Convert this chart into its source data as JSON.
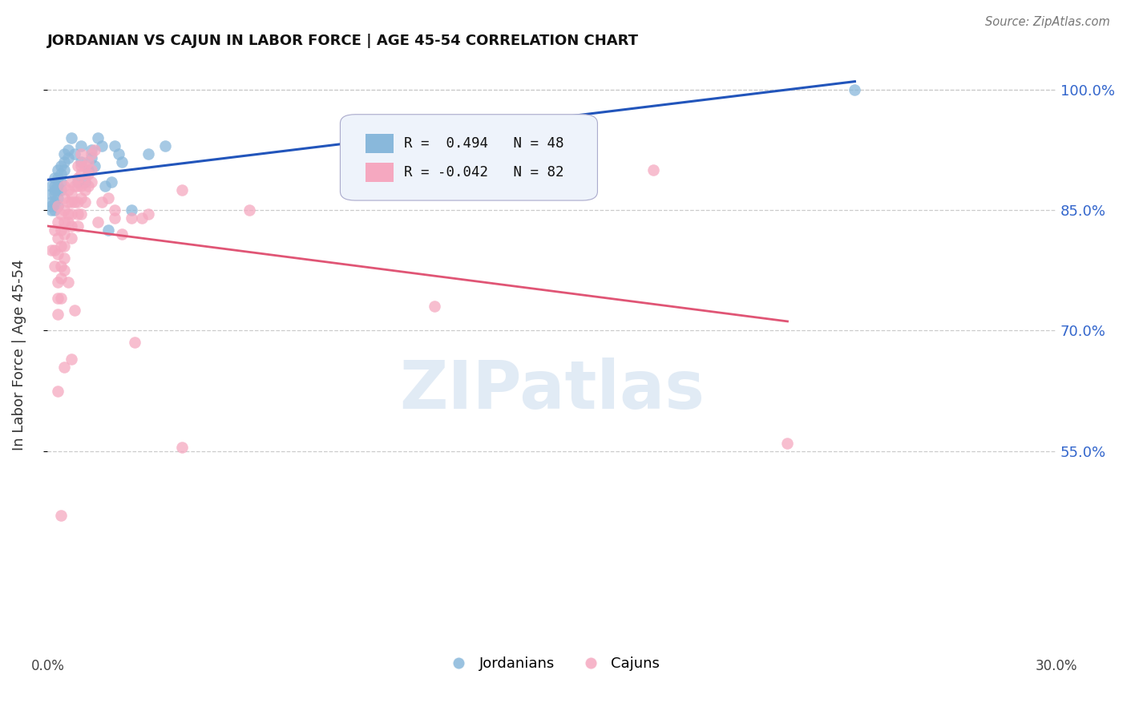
{
  "title": "JORDANIAN VS CAJUN IN LABOR FORCE | AGE 45-54 CORRELATION CHART",
  "source": "Source: ZipAtlas.com",
  "ylabel": "In Labor Force | Age 45-54",
  "xlim": [
    0.0,
    0.3
  ],
  "ylim": [
    0.3,
    1.04
  ],
  "yticks": [
    0.55,
    0.7,
    0.85,
    1.0
  ],
  "ytick_labels": [
    "55.0%",
    "70.0%",
    "85.0%",
    "100.0%"
  ],
  "yticks_dashed": [
    0.55,
    0.7,
    0.85,
    1.0
  ],
  "xticks": [
    0.0,
    0.05,
    0.1,
    0.15,
    0.2,
    0.25,
    0.3
  ],
  "xtick_labels": [
    "0.0%",
    "",
    "",
    "",
    "",
    "",
    "30.0%"
  ],
  "R_jordanian": 0.494,
  "N_jordanian": 48,
  "R_cajun": -0.042,
  "N_cajun": 82,
  "jordanian_color": "#89b8db",
  "cajun_color": "#f5a8c0",
  "jordanian_line_color": "#2255bb",
  "cajun_line_color": "#e05575",
  "watermark_text": "ZIPatlas",
  "jordanian_points": [
    [
      0.001,
      0.88
    ],
    [
      0.001,
      0.87
    ],
    [
      0.001,
      0.86
    ],
    [
      0.001,
      0.855
    ],
    [
      0.001,
      0.85
    ],
    [
      0.002,
      0.89
    ],
    [
      0.002,
      0.88
    ],
    [
      0.002,
      0.875
    ],
    [
      0.002,
      0.87
    ],
    [
      0.002,
      0.86
    ],
    [
      0.002,
      0.85
    ],
    [
      0.003,
      0.9
    ],
    [
      0.003,
      0.89
    ],
    [
      0.003,
      0.88
    ],
    [
      0.003,
      0.875
    ],
    [
      0.003,
      0.865
    ],
    [
      0.003,
      0.855
    ],
    [
      0.004,
      0.905
    ],
    [
      0.004,
      0.895
    ],
    [
      0.004,
      0.885
    ],
    [
      0.004,
      0.875
    ],
    [
      0.005,
      0.92
    ],
    [
      0.005,
      0.91
    ],
    [
      0.005,
      0.9
    ],
    [
      0.006,
      0.925
    ],
    [
      0.006,
      0.915
    ],
    [
      0.007,
      0.94
    ],
    [
      0.008,
      0.92
    ],
    [
      0.009,
      0.885
    ],
    [
      0.01,
      0.93
    ],
    [
      0.01,
      0.91
    ],
    [
      0.011,
      0.885
    ],
    [
      0.012,
      0.9
    ],
    [
      0.013,
      0.925
    ],
    [
      0.013,
      0.915
    ],
    [
      0.014,
      0.905
    ],
    [
      0.015,
      0.94
    ],
    [
      0.016,
      0.93
    ],
    [
      0.017,
      0.88
    ],
    [
      0.018,
      0.825
    ],
    [
      0.019,
      0.885
    ],
    [
      0.02,
      0.93
    ],
    [
      0.021,
      0.92
    ],
    [
      0.022,
      0.91
    ],
    [
      0.025,
      0.85
    ],
    [
      0.03,
      0.92
    ],
    [
      0.035,
      0.93
    ],
    [
      0.24,
      1.0
    ]
  ],
  "cajun_points": [
    [
      0.001,
      0.8
    ],
    [
      0.002,
      0.825
    ],
    [
      0.002,
      0.8
    ],
    [
      0.002,
      0.78
    ],
    [
      0.003,
      0.855
    ],
    [
      0.003,
      0.835
    ],
    [
      0.003,
      0.815
    ],
    [
      0.003,
      0.795
    ],
    [
      0.003,
      0.76
    ],
    [
      0.003,
      0.74
    ],
    [
      0.003,
      0.72
    ],
    [
      0.003,
      0.625
    ],
    [
      0.004,
      0.845
    ],
    [
      0.004,
      0.825
    ],
    [
      0.004,
      0.805
    ],
    [
      0.004,
      0.78
    ],
    [
      0.004,
      0.765
    ],
    [
      0.004,
      0.74
    ],
    [
      0.004,
      0.47
    ],
    [
      0.005,
      0.88
    ],
    [
      0.005,
      0.865
    ],
    [
      0.005,
      0.85
    ],
    [
      0.005,
      0.835
    ],
    [
      0.005,
      0.82
    ],
    [
      0.005,
      0.805
    ],
    [
      0.005,
      0.79
    ],
    [
      0.005,
      0.775
    ],
    [
      0.005,
      0.655
    ],
    [
      0.006,
      0.875
    ],
    [
      0.006,
      0.86
    ],
    [
      0.006,
      0.845
    ],
    [
      0.006,
      0.835
    ],
    [
      0.006,
      0.76
    ],
    [
      0.007,
      0.885
    ],
    [
      0.007,
      0.87
    ],
    [
      0.007,
      0.86
    ],
    [
      0.007,
      0.845
    ],
    [
      0.007,
      0.83
    ],
    [
      0.007,
      0.815
    ],
    [
      0.007,
      0.665
    ],
    [
      0.008,
      0.88
    ],
    [
      0.008,
      0.86
    ],
    [
      0.008,
      0.725
    ],
    [
      0.009,
      0.905
    ],
    [
      0.009,
      0.89
    ],
    [
      0.009,
      0.88
    ],
    [
      0.009,
      0.86
    ],
    [
      0.009,
      0.845
    ],
    [
      0.009,
      0.83
    ],
    [
      0.01,
      0.92
    ],
    [
      0.01,
      0.905
    ],
    [
      0.01,
      0.895
    ],
    [
      0.01,
      0.88
    ],
    [
      0.01,
      0.865
    ],
    [
      0.01,
      0.845
    ],
    [
      0.011,
      0.905
    ],
    [
      0.011,
      0.89
    ],
    [
      0.011,
      0.875
    ],
    [
      0.011,
      0.86
    ],
    [
      0.012,
      0.91
    ],
    [
      0.012,
      0.895
    ],
    [
      0.012,
      0.88
    ],
    [
      0.013,
      0.92
    ],
    [
      0.013,
      0.9
    ],
    [
      0.013,
      0.885
    ],
    [
      0.014,
      0.925
    ],
    [
      0.015,
      0.835
    ],
    [
      0.016,
      0.86
    ],
    [
      0.018,
      0.865
    ],
    [
      0.02,
      0.85
    ],
    [
      0.02,
      0.84
    ],
    [
      0.022,
      0.82
    ],
    [
      0.025,
      0.84
    ],
    [
      0.026,
      0.685
    ],
    [
      0.028,
      0.84
    ],
    [
      0.03,
      0.845
    ],
    [
      0.04,
      0.875
    ],
    [
      0.04,
      0.555
    ],
    [
      0.06,
      0.85
    ],
    [
      0.115,
      0.73
    ],
    [
      0.18,
      0.9
    ],
    [
      0.22,
      0.56
    ]
  ]
}
